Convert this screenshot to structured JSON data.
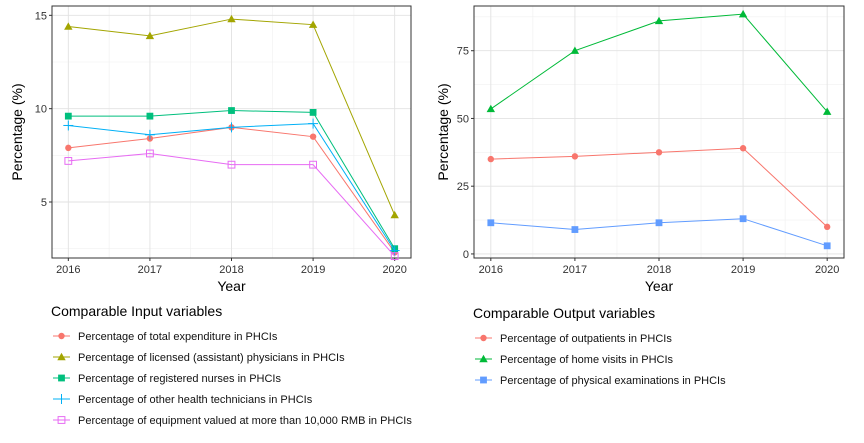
{
  "chart_data": [
    {
      "type": "line",
      "xlabel": "Year",
      "ylabel": "Percentage (%)",
      "x": [
        2016,
        2017,
        2018,
        2019,
        2020
      ],
      "xlim": [
        2015.8,
        2020.2
      ],
      "ylim": [
        2.0,
        15.5
      ],
      "yticks": [
        5,
        10,
        15
      ],
      "grid": true,
      "legend_title": "Comparable Input variables",
      "legend_position": "bottom",
      "series": [
        {
          "name": "Percentage of total expenditure in PHCIs",
          "marker": "circle",
          "color": "#F8766D",
          "values": [
            7.9,
            8.4,
            9.0,
            8.5,
            2.3
          ]
        },
        {
          "name": "Percentage of licensed (assistant) physicians in PHCIs",
          "marker": "triangle",
          "color": "#A3A500",
          "values": [
            14.4,
            13.9,
            14.8,
            14.5,
            4.3
          ]
        },
        {
          "name": "Percentage of registered nurses in PHCIs",
          "marker": "square",
          "color": "#00BF7D",
          "values": [
            9.6,
            9.6,
            9.9,
            9.8,
            2.5
          ]
        },
        {
          "name": "Percentage of other health technicians in PHCIs",
          "marker": "plus",
          "color": "#00B0F6",
          "values": [
            9.1,
            8.6,
            9.0,
            9.2,
            2.4
          ]
        },
        {
          "name": "Percentage of equipment valued at more than 10,000 RMB in PHCIs",
          "marker": "square-open",
          "color": "#E76BF3",
          "values": [
            7.2,
            7.6,
            7.0,
            7.0,
            2.1
          ]
        }
      ]
    },
    {
      "type": "line",
      "xlabel": "Year",
      "ylabel": "Percentage (%)",
      "x": [
        2016,
        2017,
        2018,
        2019,
        2020
      ],
      "xlim": [
        2015.8,
        2020.2
      ],
      "ylim": [
        -1.5,
        91.5
      ],
      "yticks": [
        0,
        25,
        50,
        75
      ],
      "grid": true,
      "legend_title": "Comparable Output variables",
      "legend_position": "bottom",
      "series": [
        {
          "name": "Percentage of outpatients in PHCIs",
          "marker": "circle",
          "color": "#F8766D",
          "values": [
            35.0,
            36.0,
            37.5,
            39.0,
            10.0
          ]
        },
        {
          "name": "Percentage of home visits in PHCIs",
          "marker": "triangle",
          "color": "#00BA38",
          "values": [
            53.5,
            75.0,
            86.0,
            88.5,
            52.5
          ]
        },
        {
          "name": "Percentage of physical examinations in PHCIs",
          "marker": "square",
          "color": "#619CFF",
          "values": [
            11.5,
            9.0,
            11.5,
            13.0,
            3.0
          ]
        }
      ]
    }
  ]
}
